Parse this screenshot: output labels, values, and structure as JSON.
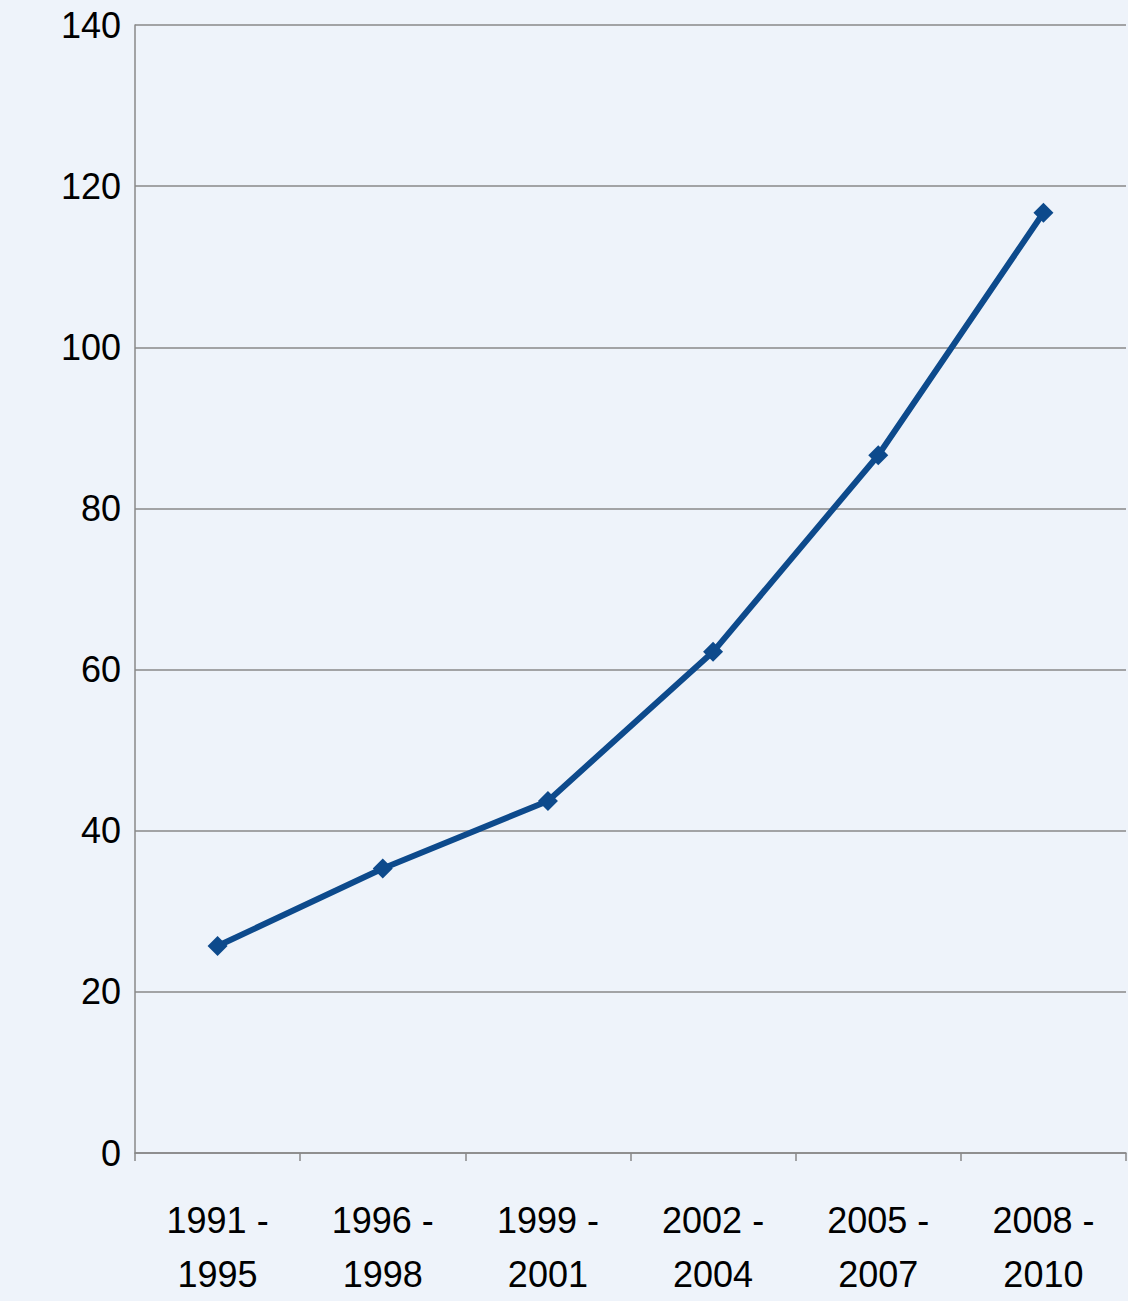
{
  "chart_data": {
    "type": "line",
    "categories": [
      "1991 - 1995",
      "1996 - 1998",
      "1999 - 2001",
      "2002 - 2004",
      "2005 - 2007",
      "2008 - 2010"
    ],
    "values": [
      25.7,
      35.3,
      43.7,
      62.2,
      86.6,
      116.7
    ],
    "color": "#0d4a8c",
    "marker": "diamond",
    "ylim": [
      0,
      140
    ],
    "yticks": [
      0,
      20,
      40,
      60,
      80,
      100,
      120,
      140
    ],
    "grid": true
  }
}
